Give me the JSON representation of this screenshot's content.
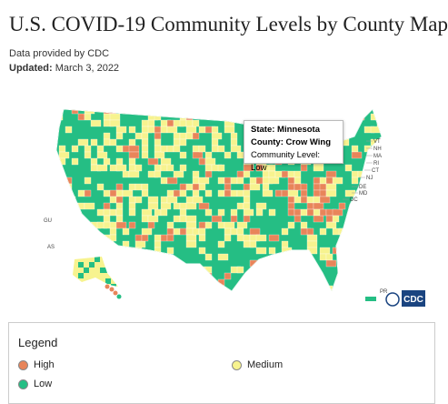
{
  "header": {
    "title": "U.S. COVID-19 Community Levels by County Map",
    "source": "Data provided by CDC",
    "updated_label": "Updated:",
    "updated_date": "March 3, 2022"
  },
  "map": {
    "state_labels": [
      "VT",
      "NH",
      "MA",
      "RI",
      "CT",
      "NJ",
      "DE",
      "MD",
      "DC"
    ],
    "territory_labels": [
      "GU",
      "AS",
      "PR"
    ],
    "logo": "CDC"
  },
  "tooltip": {
    "state": "State: Minnesota",
    "county": "County: Crow Wing",
    "level": "Community Level: Low"
  },
  "legend": {
    "title": "Legend",
    "items": [
      {
        "label": "High",
        "color": "#e8855a"
      },
      {
        "label": "Medium",
        "color": "#f7f38f"
      },
      {
        "label": "Low",
        "color": "#25be84"
      }
    ]
  }
}
